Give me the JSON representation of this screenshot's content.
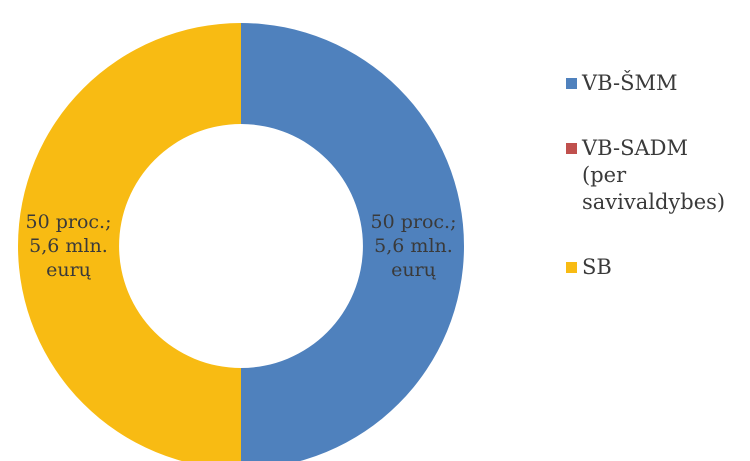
{
  "chart_data": {
    "type": "pie",
    "subtype": "donut",
    "title": "",
    "legend_position": "right",
    "series": [
      {
        "name": "",
        "categories": [
          "VB-ŠMM",
          "VB-SADM (per savivaldybes)",
          "SB"
        ],
        "values": [
          50,
          0,
          50
        ],
        "colors": [
          "#4f81bd",
          "#c0504d",
          "#f8bb13"
        ]
      }
    ],
    "data_labels": [
      {
        "category": "VB-ŠMM",
        "text": "50 proc.;\n5,6 mln.\neurų"
      },
      {
        "category": "SB",
        "text": "50 proc.;\n5,6 mln.\neurų"
      }
    ],
    "legend": [
      {
        "label": "VB-ŠMM",
        "color": "#4f81bd"
      },
      {
        "label": "VB-SADM\n(per\nsavivaldybes)",
        "color": "#c0504d"
      },
      {
        "label": "SB",
        "color": "#f8bb13"
      }
    ]
  }
}
